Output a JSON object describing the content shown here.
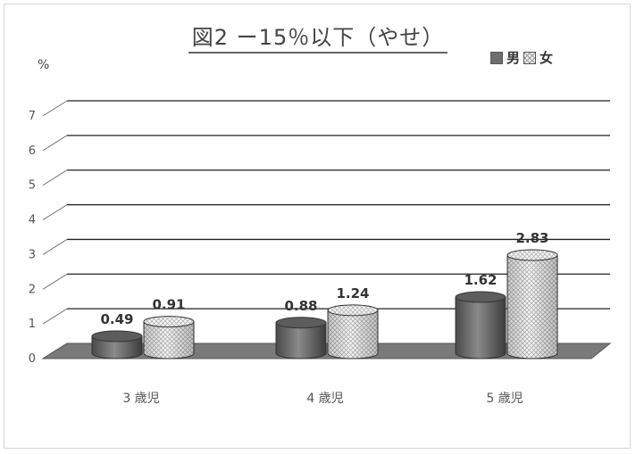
{
  "chart_data": {
    "type": "bar",
    "title": "図2 ー15％以下（やせ）",
    "ylabel": "%",
    "ylim": [
      0,
      7
    ],
    "yticks": [
      "0",
      "1",
      "2",
      "3",
      "4",
      "5",
      "6",
      "7"
    ],
    "categories": [
      "3 歳児",
      "4 歳児",
      "5 歳児"
    ],
    "series": [
      {
        "name": "男",
        "values": [
          0.49,
          0.88,
          1.62
        ],
        "labels": [
          "0.49",
          "0.88",
          "1.62"
        ],
        "color": "#6e6e6e"
      },
      {
        "name": "女",
        "values": [
          0.91,
          1.24,
          2.83
        ],
        "labels": [
          "0.91",
          "1.24",
          "2.83"
        ],
        "color": "#f2f2f2"
      }
    ],
    "grid": true,
    "legend": "top-right",
    "style": "3d-cylinder"
  }
}
